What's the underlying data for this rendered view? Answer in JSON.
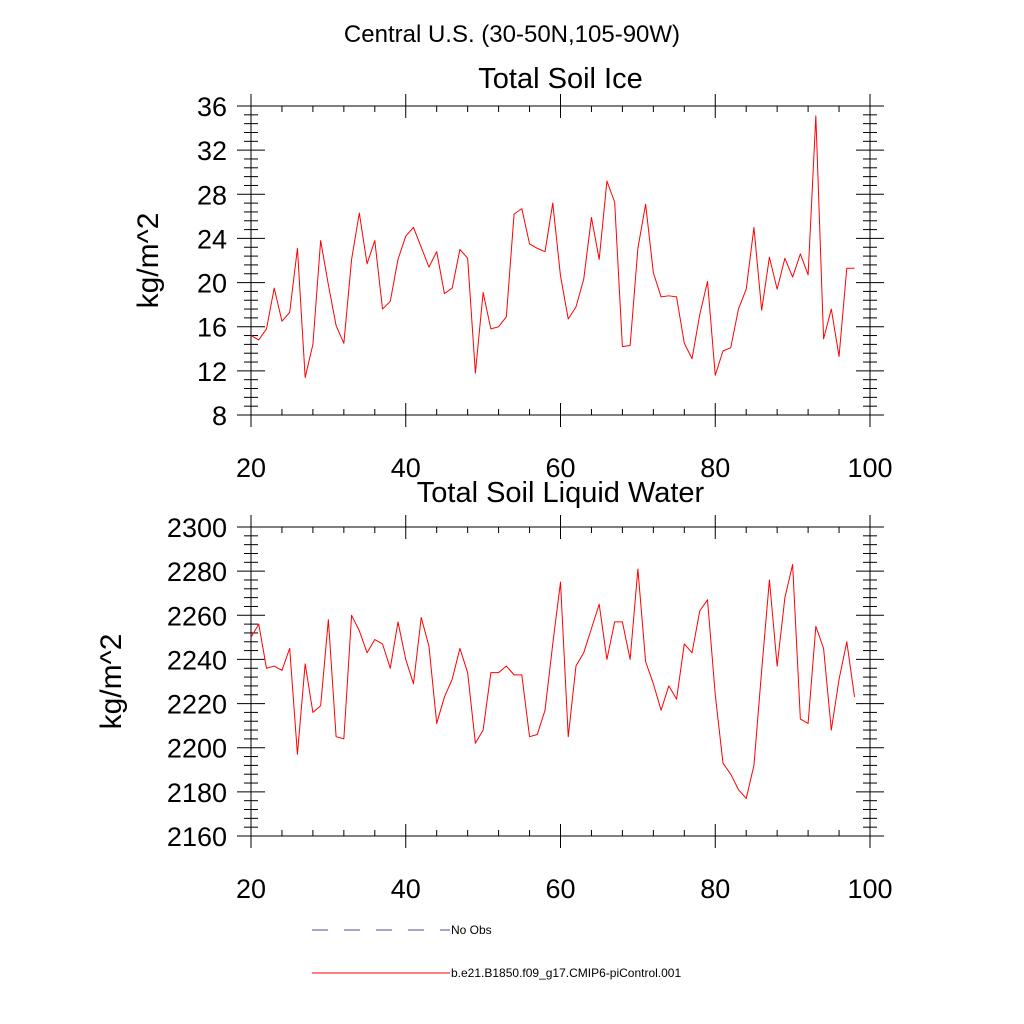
{
  "figure": {
    "title": "Central U.S. (30-50N,105-90W)"
  },
  "chart_data": [
    {
      "type": "line",
      "title": "Total Soil Ice",
      "xlabel": "",
      "ylabel": "kg/m^2",
      "xlim": [
        20,
        100
      ],
      "ylim": [
        8,
        36
      ],
      "xticks": [
        20,
        40,
        60,
        80,
        100
      ],
      "yticks": [
        8,
        12,
        16,
        20,
        24,
        28,
        32,
        36
      ],
      "xtick_labels": [
        "20",
        "40",
        "60",
        "80",
        "100"
      ],
      "ytick_labels": [
        "8",
        "12",
        "16",
        "20",
        "24",
        "28",
        "32",
        "36"
      ],
      "series": [
        {
          "name": "b.e21.B1850.f09_g17.CMIP6-piControl.001",
          "color": "#ff0000",
          "x": [
            20,
            21,
            22,
            23,
            24,
            25,
            26,
            27,
            28,
            29,
            30,
            31,
            32,
            33,
            34,
            35,
            36,
            37,
            38,
            39,
            40,
            41,
            42,
            43,
            44,
            45,
            46,
            47,
            48,
            49,
            50,
            51,
            52,
            53,
            54,
            55,
            56,
            57,
            58,
            59,
            60,
            61,
            62,
            63,
            64,
            65,
            66,
            67,
            68,
            69,
            70,
            71,
            72,
            73,
            74,
            75,
            76,
            77,
            78,
            79,
            80,
            81,
            82,
            83,
            84,
            85,
            86,
            87,
            88,
            89,
            90,
            91,
            92,
            93,
            94,
            95,
            96,
            97,
            98
          ],
          "values": [
            15.2,
            14.8,
            15.8,
            19.5,
            16.5,
            17.3,
            23.1,
            11.4,
            14.4,
            23.8,
            19.8,
            16.1,
            14.5,
            22.1,
            26.3,
            21.7,
            23.8,
            17.6,
            18.3,
            22.1,
            24.2,
            25.0,
            23.2,
            21.4,
            22.8,
            19.0,
            19.5,
            23.0,
            22.2,
            11.8,
            19.1,
            15.8,
            16.0,
            16.9,
            26.2,
            26.7,
            23.5,
            23.1,
            22.8,
            27.2,
            20.6,
            16.7,
            17.8,
            20.3,
            25.9,
            22.1,
            29.2,
            27.3,
            14.2,
            14.3,
            23.1,
            27.1,
            20.9,
            18.7,
            18.8,
            18.7,
            14.5,
            13.1,
            17.1,
            20.1,
            11.6,
            13.8,
            14.1,
            17.6,
            19.4,
            25.0,
            17.5,
            22.3,
            19.4,
            22.2,
            20.5,
            22.6,
            20.7,
            35.1,
            14.9,
            17.6,
            13.3,
            21.3,
            21.3
          ]
        }
      ]
    },
    {
      "type": "line",
      "title": "Total Soil Liquid Water",
      "xlabel": "",
      "ylabel": "kg/m^2",
      "xlim": [
        20,
        100
      ],
      "ylim": [
        2160,
        2300
      ],
      "xticks": [
        20,
        40,
        60,
        80,
        100
      ],
      "yticks": [
        2160,
        2180,
        2200,
        2220,
        2240,
        2260,
        2280,
        2300
      ],
      "xtick_labels": [
        "20",
        "40",
        "60",
        "80",
        "100"
      ],
      "ytick_labels": [
        "2160",
        "2180",
        "2200",
        "2220",
        "2240",
        "2260",
        "2280",
        "2300"
      ],
      "series": [
        {
          "name": "b.e21.B1850.f09_g17.CMIP6-piControl.001",
          "color": "#ff0000",
          "x": [
            20,
            21,
            22,
            23,
            24,
            25,
            26,
            27,
            28,
            29,
            30,
            31,
            32,
            33,
            34,
            35,
            36,
            37,
            38,
            39,
            40,
            41,
            42,
            43,
            44,
            45,
            46,
            47,
            48,
            49,
            50,
            51,
            52,
            53,
            54,
            55,
            56,
            57,
            58,
            59,
            60,
            61,
            62,
            63,
            64,
            65,
            66,
            67,
            68,
            69,
            70,
            71,
            72,
            73,
            74,
            75,
            76,
            77,
            78,
            79,
            80,
            81,
            82,
            83,
            84,
            85,
            86,
            87,
            88,
            89,
            90,
            91,
            92,
            93,
            94,
            95,
            96,
            97,
            98
          ],
          "values": [
            2250,
            2256,
            2236,
            2237,
            2235,
            2245,
            2197,
            2238,
            2216,
            2219,
            2258,
            2205,
            2204,
            2260,
            2253,
            2243,
            2249,
            2247,
            2236,
            2257,
            2240,
            2229,
            2259,
            2246,
            2211,
            2223,
            2231,
            2245,
            2234,
            2202,
            2208,
            2234,
            2234,
            2237,
            2233,
            2233,
            2205,
            2206,
            2217,
            2247,
            2275,
            2205,
            2237,
            2243,
            2254,
            2265,
            2240,
            2257,
            2257,
            2240,
            2281,
            2239,
            2229,
            2217,
            2228,
            2222,
            2247,
            2243,
            2262,
            2267,
            2224,
            2193,
            2188,
            2181,
            2177,
            2192,
            2235,
            2276,
            2237,
            2268,
            2283,
            2213,
            2211,
            2255,
            2245,
            2208,
            2231,
            2248,
            2223
          ]
        }
      ]
    }
  ],
  "legend": {
    "placement": "bottom-left",
    "items": [
      {
        "label": "No Obs",
        "color": "#4a4ab0",
        "style": "dashed"
      },
      {
        "label": "b.e21.B1850.f09_g17.CMIP6-piControl.001",
        "color": "#ff0000",
        "style": "solid"
      }
    ]
  }
}
